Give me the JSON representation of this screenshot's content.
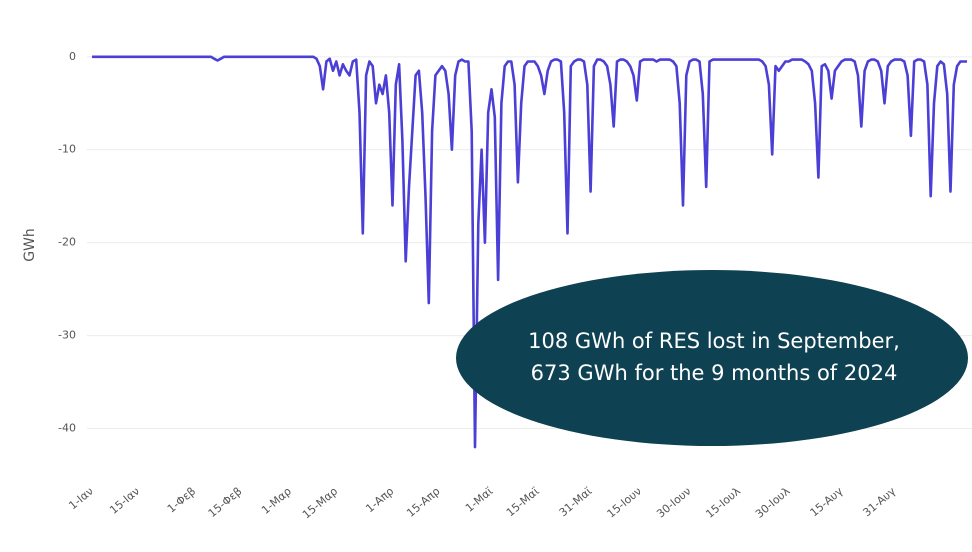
{
  "chart_data": {
    "type": "line",
    "y_label": "GWh",
    "annotation": [
      "108 GWh of RES lost in September,",
      "673 GWh for the 9 months of 2024"
    ],
    "categories": [
      "1-Ιαν",
      null,
      null,
      null,
      null,
      null,
      null,
      null,
      null,
      null,
      null,
      null,
      null,
      null,
      "15-Ιαν",
      null,
      null,
      null,
      null,
      null,
      null,
      null,
      null,
      null,
      null,
      null,
      null,
      null,
      null,
      null,
      null,
      "1-Φεβ",
      null,
      null,
      null,
      null,
      null,
      null,
      null,
      null,
      null,
      null,
      null,
      null,
      null,
      "15-Φεβ",
      null,
      null,
      null,
      null,
      null,
      null,
      null,
      null,
      null,
      null,
      null,
      null,
      null,
      null,
      "1-Μαρ",
      null,
      null,
      null,
      null,
      null,
      null,
      null,
      null,
      null,
      null,
      null,
      null,
      null,
      "15-Μαρ",
      null,
      null,
      null,
      null,
      null,
      null,
      null,
      null,
      null,
      null,
      null,
      null,
      null,
      null,
      null,
      null,
      "1-Απρ",
      null,
      null,
      null,
      null,
      null,
      null,
      null,
      null,
      null,
      null,
      null,
      null,
      null,
      "15-Απρ",
      null,
      null,
      null,
      null,
      null,
      null,
      null,
      null,
      null,
      null,
      null,
      null,
      null,
      null,
      null,
      "1-Μαϊ",
      null,
      null,
      null,
      null,
      null,
      null,
      null,
      null,
      null,
      null,
      null,
      null,
      null,
      "15-Μαϊ",
      null,
      null,
      null,
      null,
      null,
      null,
      null,
      null,
      null,
      null,
      null,
      null,
      null,
      null,
      null,
      "31-Μαϊ",
      null,
      null,
      null,
      null,
      null,
      null,
      null,
      null,
      null,
      null,
      null,
      null,
      null,
      null,
      "15-Ιουν",
      null,
      null,
      null,
      null,
      null,
      null,
      null,
      null,
      null,
      null,
      null,
      null,
      null,
      null,
      "30-Ιουν",
      null,
      null,
      null,
      null,
      null,
      null,
      null,
      null,
      null,
      null,
      null,
      null,
      null,
      null,
      "15-Ιουλ",
      null,
      null,
      null,
      null,
      null,
      null,
      null,
      null,
      null,
      null,
      null,
      null,
      null,
      null,
      "30-Ιουλ",
      null,
      null,
      null,
      null,
      null,
      null,
      null,
      null,
      null,
      null,
      null,
      null,
      null,
      null,
      null,
      "15-Αυγ",
      null,
      null,
      null,
      null,
      null,
      null,
      null,
      null,
      null,
      null,
      null,
      null,
      null,
      null,
      null,
      "31-Αυγ",
      null,
      null,
      null,
      null,
      null,
      null,
      null,
      null,
      null,
      null,
      null,
      null,
      null,
      null,
      null,
      null,
      null,
      null,
      null,
      null,
      null,
      null
    ],
    "series": [
      {
        "name": "GWh",
        "color": "#4b3fd6",
        "values": [
          0,
          0,
          0,
          0,
          0,
          0,
          0,
          0,
          0,
          0,
          0,
          0,
          0,
          0,
          0,
          0,
          0,
          0,
          0,
          0,
          0,
          0,
          0,
          0,
          0,
          0,
          0,
          0,
          0,
          0,
          0,
          0,
          0,
          0,
          0,
          0,
          0,
          -0.2,
          -0.4,
          -0.2,
          0,
          0,
          0,
          0,
          0,
          0,
          0,
          0,
          0,
          0,
          0,
          0,
          0,
          0,
          0,
          0,
          0,
          0,
          0,
          0,
          0,
          0,
          0,
          0,
          0,
          0,
          0,
          0,
          -0.2,
          -1,
          -3.5,
          -0.5,
          -0.2,
          -1.5,
          -0.5,
          -2,
          -0.8,
          -1.5,
          -2,
          -0.5,
          -0.3,
          -6,
          -19,
          -2,
          -0.5,
          -1,
          -5,
          -3,
          -4,
          -2,
          -6,
          -16,
          -3,
          -0.8,
          -9,
          -22,
          -14,
          -8,
          -2,
          -1.5,
          -6,
          -15,
          -26.5,
          -8,
          -2,
          -1.5,
          -1,
          -1.5,
          -4,
          -10,
          -2,
          -0.5,
          -0.3,
          -0.5,
          -0.5,
          -8,
          -42,
          -18,
          -10,
          -20,
          -6,
          -3.5,
          -6.5,
          -24,
          -5,
          -1,
          -0.5,
          -0.5,
          -3,
          -13.5,
          -5,
          -1,
          -0.5,
          -0.5,
          -0.5,
          -1,
          -2,
          -4,
          -1.5,
          -0.5,
          -0.3,
          -0.3,
          -0.5,
          -6,
          -19,
          -1,
          -0.5,
          -0.3,
          -0.3,
          -0.5,
          -3,
          -14.5,
          -1,
          -0.3,
          -0.3,
          -0.5,
          -1,
          -3,
          -7.5,
          -0.5,
          -0.3,
          -0.3,
          -0.5,
          -1,
          -2,
          -4.7,
          -0.5,
          -0.3,
          -0.3,
          -0.3,
          -0.3,
          -0.5,
          -0.3,
          -0.3,
          -0.3,
          -0.3,
          -0.5,
          -1,
          -5,
          -16,
          -2,
          -0.5,
          -0.3,
          -0.3,
          -0.5,
          -4,
          -14,
          -0.5,
          -0.3,
          -0.3,
          -0.3,
          -0.3,
          -0.3,
          -0.3,
          -0.3,
          -0.3,
          -0.3,
          -0.3,
          -0.3,
          -0.3,
          -0.3,
          -0.3,
          -0.3,
          -0.5,
          -1,
          -3,
          -10.5,
          -1,
          -1.5,
          -1,
          -0.5,
          -0.5,
          -0.3,
          -0.3,
          -0.3,
          -0.3,
          -0.5,
          -0.8,
          -1.5,
          -5,
          -13,
          -1,
          -0.8,
          -1.5,
          -4.5,
          -1.5,
          -1,
          -0.5,
          -0.3,
          -0.3,
          -0.3,
          -0.5,
          -2,
          -7.5,
          -1.5,
          -0.5,
          -0.3,
          -0.3,
          -0.5,
          -1.5,
          -5,
          -1,
          -0.5,
          -0.3,
          -0.3,
          -0.3,
          -0.5,
          -2,
          -8.5,
          -0.5,
          -0.3,
          -0.3,
          -0.5,
          -3,
          -15,
          -5,
          -1,
          -0.5,
          -0.8,
          -4,
          -14.5,
          -3,
          -1,
          -0.5,
          -0.5,
          -0.5
        ]
      }
    ],
    "ylim": [
      -45,
      4.5
    ],
    "yticks": [
      0,
      -10,
      -20,
      -30,
      -40
    ],
    "grid": true,
    "annotation_color": "#0e4152"
  }
}
